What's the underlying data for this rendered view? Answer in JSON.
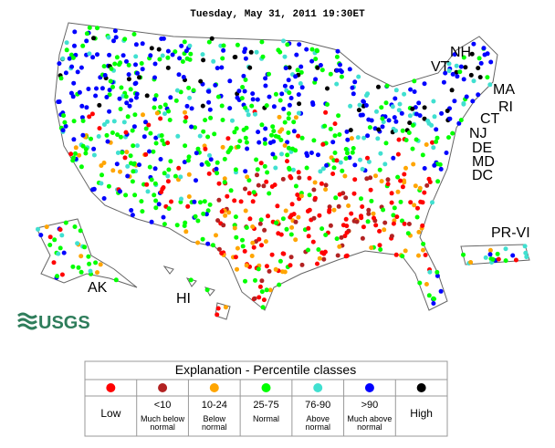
{
  "title": "Tuesday, May 31, 2011 19:30ET",
  "state_labels": [
    "NH",
    "VT",
    "MA",
    "RI",
    "CT",
    "NJ",
    "DE",
    "MD",
    "DC",
    "PR-VI",
    "AK",
    "HI"
  ],
  "logo": "USGS",
  "legend": {
    "title": "Explanation - Percentile classes",
    "classes": [
      {
        "color": "#ff0000",
        "label": "Low"
      },
      {
        "color": "#b22222",
        "range": "<10",
        "label": "Much below normal"
      },
      {
        "color": "#ffa500",
        "range": "10-24",
        "label": "Below normal"
      },
      {
        "color": "#00ff00",
        "range": "25-75",
        "label": "Normal"
      },
      {
        "color": "#40e0d0",
        "range": "76-90",
        "label": "Above normal"
      },
      {
        "color": "#0000ff",
        "range": ">90",
        "label": "Much above normal"
      },
      {
        "color": "#000000",
        "label": "High"
      }
    ]
  }
}
